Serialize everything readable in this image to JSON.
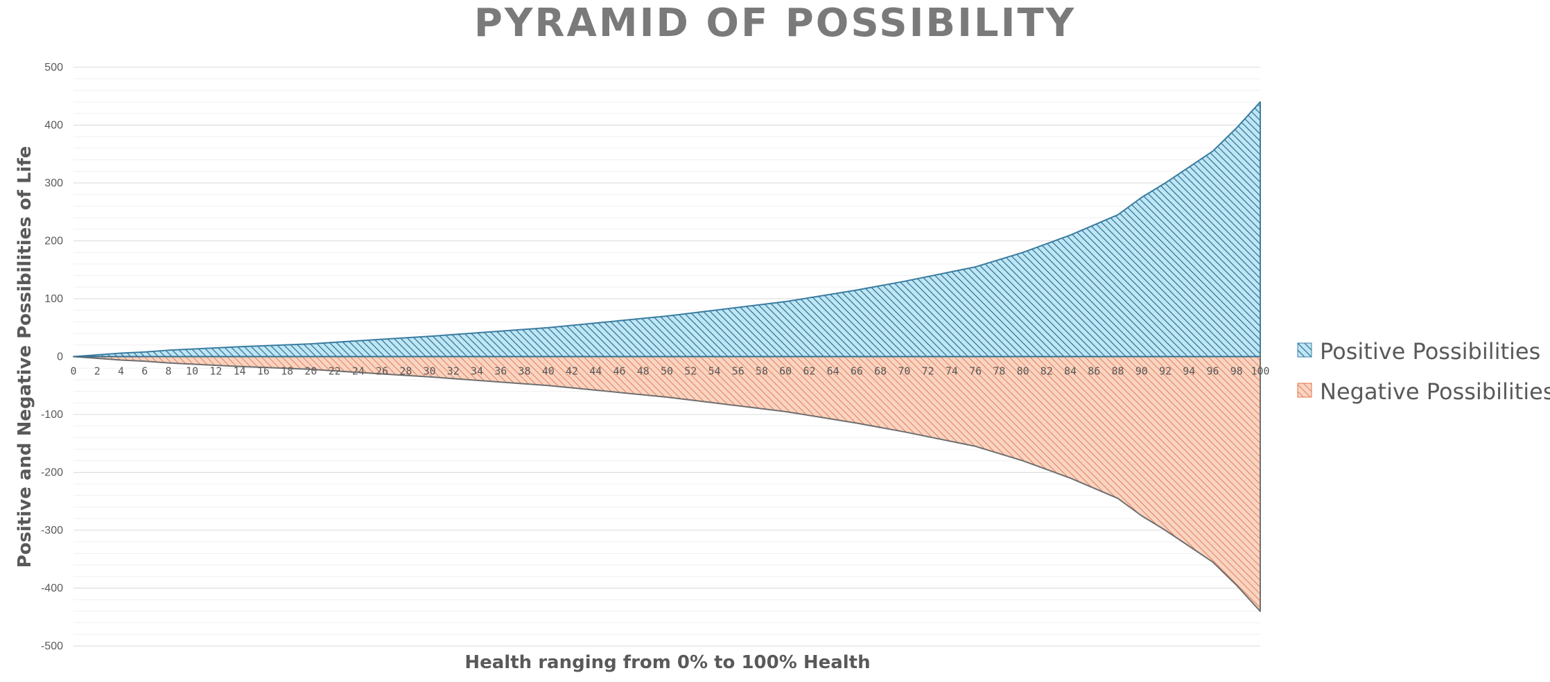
{
  "colors": {
    "positive_fill": "#bfe6f5",
    "positive_hatch": "#2a6f8e",
    "positive_stroke": "#3a7ca0",
    "negative_fill": "#f9d4c2",
    "negative_hatch": "#e0744a",
    "negative_stroke": "#6e6e6e",
    "gridline_major": "#d9d9d9",
    "gridline_minor": "#efefef",
    "zero_line": "#3a6f8e"
  },
  "chart_data": {
    "type": "area",
    "title": "PYRAMID OF POSSIBILITY",
    "xlabel": "Health ranging from 0% to 100% Health",
    "ylabel": "Positive and Negative Possibilities of Life",
    "ylim": [
      -500,
      500
    ],
    "xlim": [
      0,
      100
    ],
    "y_ticks": [
      "500",
      "400",
      "300",
      "200",
      "100",
      "0",
      "-100",
      "-200",
      "-300",
      "-400",
      "-500"
    ],
    "y_tick_values": [
      500,
      400,
      300,
      200,
      100,
      0,
      -100,
      -200,
      -300,
      -400,
      -500
    ],
    "x_tick_labels": [
      "0",
      "2",
      "4",
      "6",
      "8",
      "10",
      "12",
      "14",
      "16",
      "18",
      "20",
      "22",
      "24",
      "26",
      "28",
      "30",
      "32",
      "34",
      "36",
      "38",
      "40",
      "42",
      "44",
      "46",
      "48",
      "50",
      "52",
      "54",
      "56",
      "58",
      "60",
      "62",
      "64",
      "66",
      "68",
      "70",
      "72",
      "74",
      "76",
      "78",
      "80",
      "82",
      "84",
      "86",
      "88",
      "90",
      "92",
      "94",
      "96",
      "98",
      "100"
    ],
    "x": [
      0,
      2,
      4,
      6,
      8,
      10,
      14,
      20,
      26,
      30,
      40,
      50,
      60,
      66,
      70,
      76,
      80,
      84,
      88,
      90,
      92,
      96,
      98,
      100
    ],
    "series": [
      {
        "name": "Positive Possibilities",
        "values": [
          0,
          3,
          6,
          8,
          11,
          13,
          17,
          22,
          30,
          35,
          50,
          70,
          95,
          115,
          130,
          155,
          180,
          210,
          245,
          275,
          300,
          355,
          395,
          440
        ]
      },
      {
        "name": "Negative Possibilities",
        "values": [
          0,
          -3,
          -6,
          -8,
          -11,
          -13,
          -17,
          -22,
          -30,
          -35,
          -50,
          -70,
          -95,
          -115,
          -130,
          -155,
          -180,
          -210,
          -245,
          -275,
          -300,
          -355,
          -395,
          -440
        ]
      }
    ],
    "grid": true,
    "legend_position": "right"
  }
}
